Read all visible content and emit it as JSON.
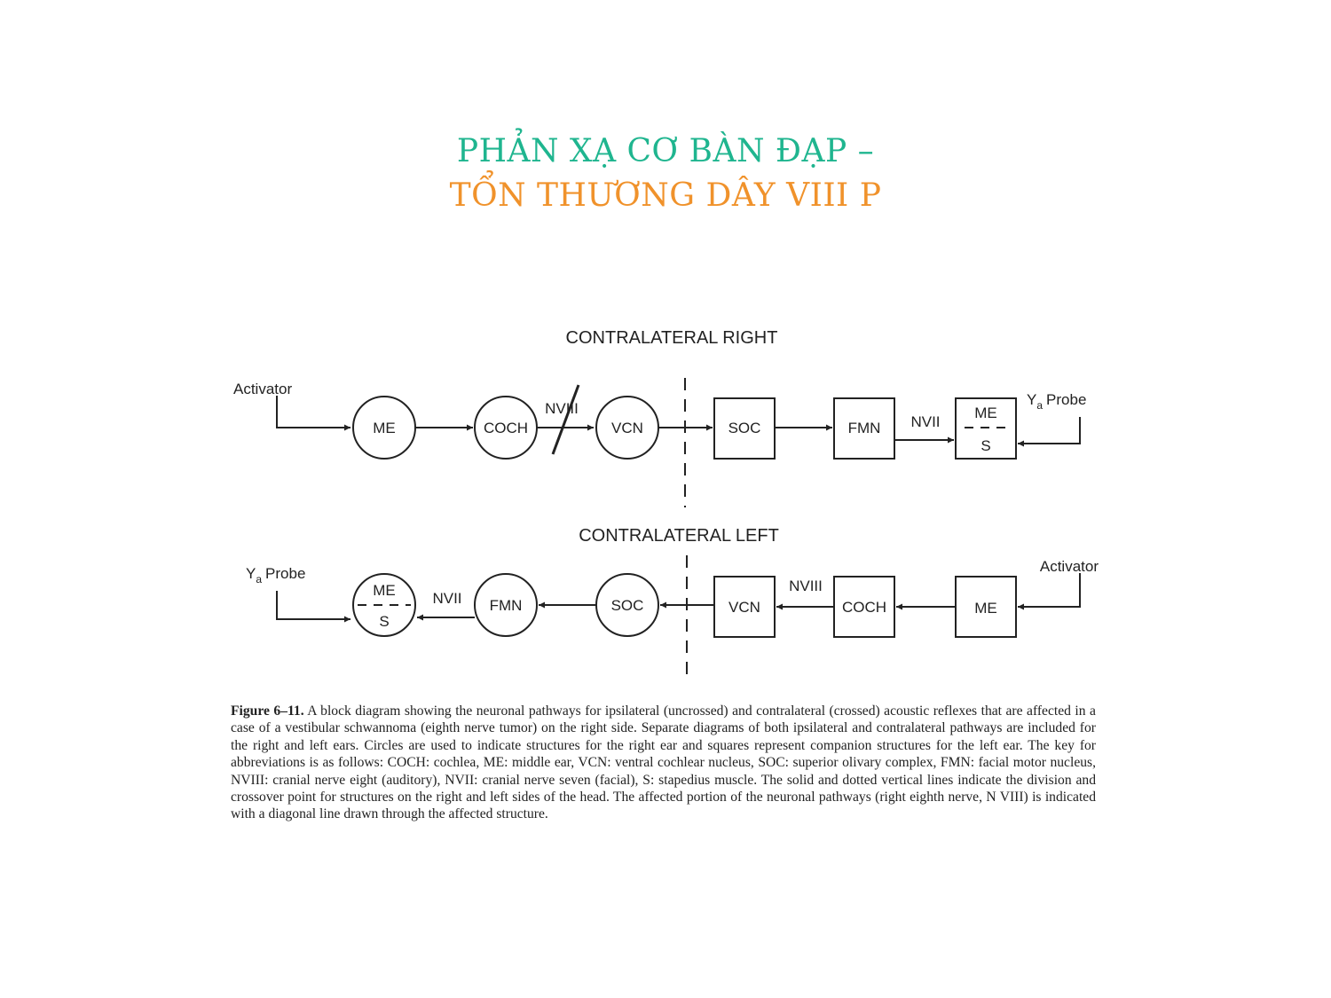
{
  "slide": {
    "title_line1": "PHẢN XẠ CƠ BÀN ĐẠP –",
    "title_line2": "TỔN THƯƠNG DÂY VIII P",
    "title_line1_color": "#1fb58f",
    "title_line2_color": "#f0922b"
  },
  "diagram": {
    "right": {
      "header": "CONTRALATERAL RIGHT",
      "activator": "Activator",
      "probe_y": "Y",
      "probe_sub": "a",
      "probe_word": "Probe",
      "me": "ME",
      "coch": "COCH",
      "nerve8": "NVIII",
      "vcn": "VCN",
      "soc": "SOC",
      "fmn": "FMN",
      "nerve7": "NVII",
      "mes_top": "ME",
      "mes_bottom": "S"
    },
    "left": {
      "header": "CONTRALATERAL LEFT",
      "activator": "Activator",
      "probe_y": "Y",
      "probe_sub": "a",
      "probe_word": "Probe",
      "mes_top": "ME",
      "mes_bottom": "S",
      "nerve7": "NVII",
      "fmn": "FMN",
      "soc": "SOC",
      "vcn": "VCN",
      "nerve8": "NVIII",
      "coch": "COCH",
      "me": "ME"
    }
  },
  "caption": {
    "figure_label": "Figure 6–11.",
    "text": "A block diagram showing the neuronal pathways for ipsilateral (uncrossed) and contralateral (crossed) acoustic reflexes that are affected in a case of a vestibular schwannoma (eighth nerve tumor) on the right side. Separate diagrams of both ipsilateral and contralateral pathways are included for the right and left ears. Circles are used to indicate structures for the right ear and squares represent companion structures for the left ear. The key for abbreviations is as follows: COCH: cochlea, ME: middle ear, VCN: ventral cochlear nucleus, SOC: superior olivary complex, FMN: facial motor nucleus, NVIII: cranial nerve eight (auditory), NVII: cranial nerve seven (facial), S: stapedius muscle. The solid and dotted vertical lines indicate the division and crossover point for structures on the right and left sides of the head. The affected portion of the neuronal pathways (right eighth nerve, N VIII) is indicated with a diagonal line drawn through the affected structure."
  }
}
